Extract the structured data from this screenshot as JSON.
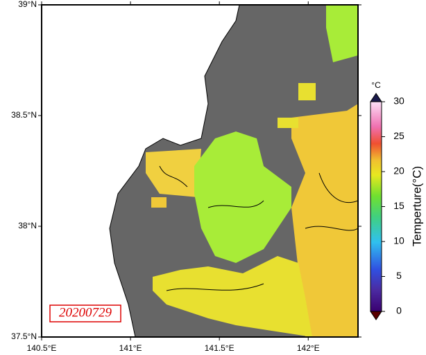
{
  "map": {
    "date_label": "20200729",
    "xlim": [
      140.5,
      142.28
    ],
    "ylim": [
      37.5,
      39
    ],
    "xticks": [
      {
        "value": 140.5,
        "label": "140.5°E"
      },
      {
        "value": 141,
        "label": "141°E"
      },
      {
        "value": 141.5,
        "label": "141.5°E"
      },
      {
        "value": 142,
        "label": "142°E"
      }
    ],
    "yticks": [
      {
        "value": 37.5,
        "label": "37.5°N"
      },
      {
        "value": 38,
        "label": "38°N"
      },
      {
        "value": 38.5,
        "label": "38.5°N"
      },
      {
        "value": 39,
        "label": "39°N"
      }
    ]
  },
  "colorbar": {
    "title": "Temperture(°C)",
    "unit": "°C",
    "lim": [
      0,
      30
    ],
    "ticks": [
      0,
      5,
      10,
      15,
      20,
      25,
      30
    ]
  }
}
